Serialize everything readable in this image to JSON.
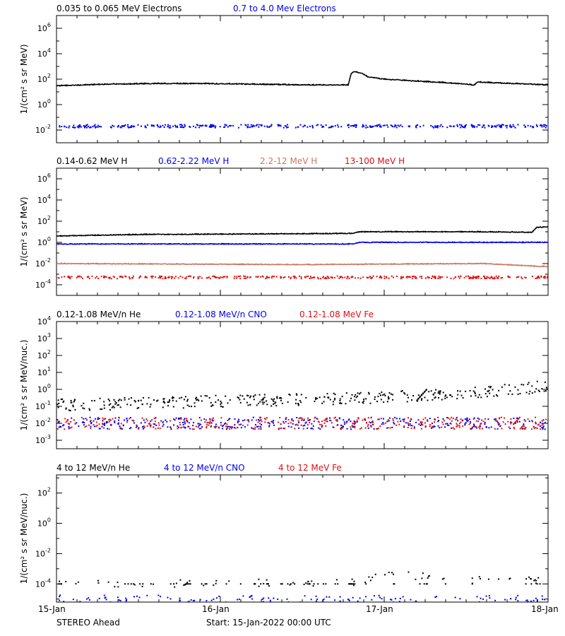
{
  "colors": {
    "black": "#000000",
    "blue": "#0000ee",
    "brown": "#c87860",
    "red": "#e01010"
  },
  "footer": {
    "left": "STEREO Ahead",
    "center": "Start: 15-Jan-2022 00:00 UTC"
  },
  "x_axis": {
    "ticks": [
      "15-Jan",
      "16-Jan",
      "17-Jan",
      "18-Jan"
    ]
  },
  "chart_data": [
    {
      "type": "scatter",
      "scale": "log",
      "ylabel": "1/(cm² s sr MeV)",
      "ylim_exp": [
        -3,
        7
      ],
      "tick_exps": [
        -2,
        0,
        2,
        4,
        6
      ],
      "legend": [
        {
          "label": "0.035 to 0.065 MeV Electrons",
          "color": "#000000"
        },
        {
          "label": "0.7 to 4.0 Mev Electrons",
          "color": "#0000ee"
        }
      ],
      "series": [
        {
          "name": "0.035 to 0.065 MeV Electrons",
          "color": "#000000",
          "style": "line",
          "x": [
            0,
            0.3,
            0.6,
            0.9,
            1.2,
            1.5,
            1.78,
            1.8,
            1.82,
            1.86,
            1.9,
            2.0,
            2.2,
            2.4,
            2.55,
            2.57,
            2.7,
            2.9,
            3.0
          ],
          "y": [
            30,
            40,
            45,
            45,
            40,
            35,
            35,
            300,
            400,
            300,
            150,
            100,
            70,
            50,
            35,
            60,
            50,
            40,
            35
          ]
        },
        {
          "name": "0.7 to 4.0 Mev Electrons",
          "color": "#0000ee",
          "style": "dots",
          "x": [
            0,
            1,
            2,
            3
          ],
          "y": [
            0.02,
            0.02,
            0.02,
            0.02
          ]
        }
      ]
    },
    {
      "type": "scatter",
      "scale": "log",
      "ylabel": "1/(cm² s sr MeV)",
      "ylim_exp": [
        -5,
        7
      ],
      "tick_exps": [
        -4,
        -2,
        0,
        2,
        4,
        6
      ],
      "legend": [
        {
          "label": "0.14-0.62 MeV H",
          "color": "#000000"
        },
        {
          "label": "0.62-2.22 MeV H",
          "color": "#0000ee"
        },
        {
          "label": "2.2-12 MeV H",
          "color": "#c87860"
        },
        {
          "label": "13-100 MeV H",
          "color": "#e01010"
        }
      ],
      "series": [
        {
          "name": "0.14-0.62 MeV H",
          "color": "#000000",
          "style": "line",
          "x": [
            0,
            0.5,
            1.0,
            1.5,
            1.8,
            1.85,
            2.5,
            2.9,
            2.93,
            3.0
          ],
          "y": [
            4,
            5.5,
            6,
            6.5,
            7,
            10,
            10,
            9,
            25,
            30
          ]
        },
        {
          "name": "0.62-2.22 MeV H",
          "color": "#0000ee",
          "style": "line",
          "x": [
            0,
            1.8,
            1.85,
            3.0
          ],
          "y": [
            0.7,
            0.7,
            1.0,
            1.0
          ]
        },
        {
          "name": "2.2-12 MeV H",
          "color": "#c87860",
          "style": "line",
          "x": [
            0,
            1.5,
            2.6,
            3.0
          ],
          "y": [
            0.01,
            0.008,
            0.01,
            0.005
          ]
        },
        {
          "name": "13-100 MeV H",
          "color": "#e01010",
          "style": "dots",
          "x": [
            0,
            3
          ],
          "y": [
            0.0005,
            0.0005
          ]
        }
      ]
    },
    {
      "type": "scatter",
      "scale": "log",
      "ylabel": "1/(cm² s sr MeV/nuc.)",
      "ylim_exp": [
        -3.5,
        4
      ],
      "tick_exps": [
        -3,
        -2,
        -1,
        0,
        1,
        2,
        3,
        4
      ],
      "tick_style": "power",
      "legend": [
        {
          "label": "0.12-1.08 MeV/n He",
          "color": "#000000"
        },
        {
          "label": "0.12-1.08 MeV/n CNO",
          "color": "#0000ee"
        },
        {
          "label": "0.12-1.08 MeV Fe",
          "color": "#e01010"
        }
      ],
      "series": [
        {
          "name": "0.12-1.08 MeV/n He",
          "color": "#000000",
          "style": "dots",
          "x": [
            0,
            0.5,
            1.0,
            1.5,
            2.0,
            2.5,
            3.0
          ],
          "y": [
            0.12,
            0.15,
            0.2,
            0.25,
            0.35,
            0.6,
            1.5
          ]
        },
        {
          "name": "0.12-1.08 MeV/n CNO",
          "color": "#0000ee",
          "style": "dots",
          "x": [
            0,
            3
          ],
          "y": [
            0.01,
            0.01
          ]
        },
        {
          "name": "0.12-1.08 MeV Fe",
          "color": "#e01010",
          "style": "dots",
          "x": [
            0,
            3
          ],
          "y": [
            0.01,
            0.01
          ]
        }
      ]
    },
    {
      "type": "scatter",
      "scale": "log",
      "ylabel": "1/(cm² s sr MeV/nuc.)",
      "ylim_exp": [
        -5.2,
        3.2
      ],
      "tick_exps": [
        -4,
        -2,
        0,
        2
      ],
      "legend": [
        {
          "label": "4 to 12 MeV/n He",
          "color": "#000000"
        },
        {
          "label": "4 to 12 MeV/n CNO",
          "color": "#0000ee"
        },
        {
          "label": "4 to 12 MeV Fe",
          "color": "#e01010"
        }
      ],
      "series": [
        {
          "name": "4 to 12 MeV/n He",
          "color": "#000000",
          "style": "dots",
          "x": [
            0,
            1.8,
            2.0,
            2.4,
            3.0
          ],
          "y": [
            0.0001,
            0.00013,
            0.0005,
            0.0002,
            0.00015
          ]
        },
        {
          "name": "4 to 12 MeV/n CNO",
          "color": "#0000ee",
          "style": "dots",
          "x": [
            0,
            3
          ],
          "y": [
            1e-05,
            1e-05
          ]
        }
      ]
    }
  ]
}
